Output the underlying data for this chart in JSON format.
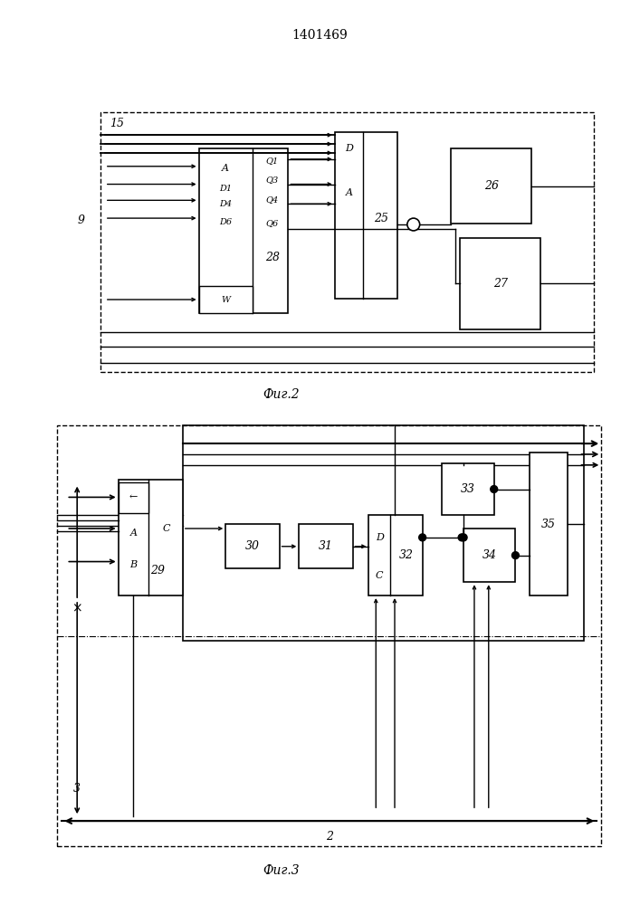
{
  "title": "1401469",
  "fig2_label": "Фиг.2",
  "fig3_label": "Фиг.3",
  "bg_color": "#ffffff"
}
